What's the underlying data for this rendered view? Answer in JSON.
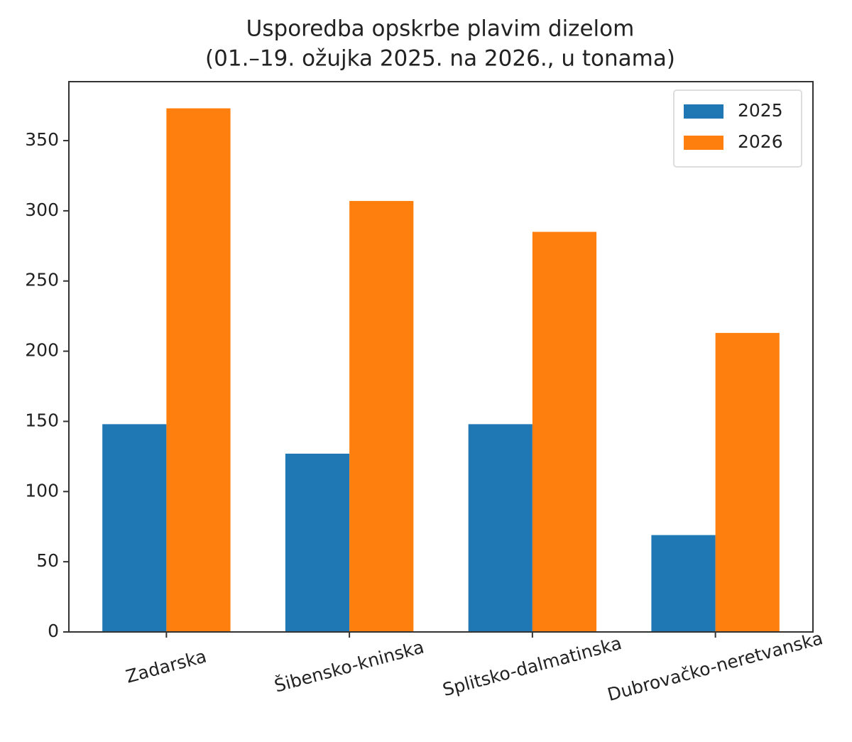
{
  "chart_data": {
    "type": "bar",
    "title": "Usporedba opskrbe plavim dizelom",
    "subtitle": "(01.–19. ožujka 2025. na 2026., u tonama)",
    "categories": [
      "Zadarska",
      "Šibensko-kninska",
      "Splitsko-dalmatinska",
      "Dubrovačko-neretvanska"
    ],
    "series": [
      {
        "name": "2025",
        "color": "#1f77b4",
        "values": [
          148,
          127,
          148,
          69
        ]
      },
      {
        "name": "2026",
        "color": "#ff7f0e",
        "values": [
          373,
          307,
          285,
          213
        ]
      }
    ],
    "ylim": [
      0,
      392
    ],
    "yticks": [
      0,
      50,
      100,
      150,
      200,
      250,
      300,
      350
    ],
    "legend": "upper right"
  }
}
